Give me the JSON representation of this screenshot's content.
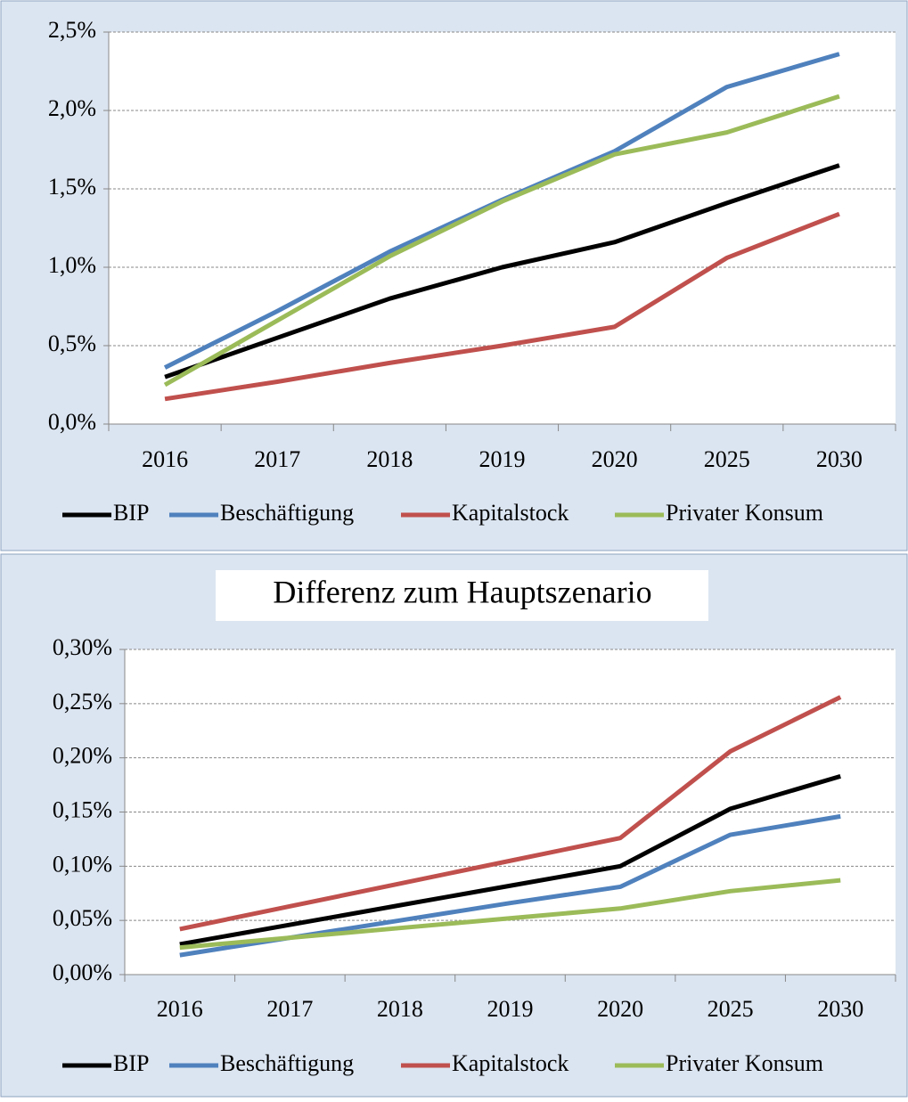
{
  "chart_data": [
    {
      "type": "line",
      "categories": [
        "2016",
        "2017",
        "2018",
        "2019",
        "2020",
        "2025",
        "2030"
      ],
      "series": [
        {
          "name": "BIP",
          "color": "#000000",
          "values": [
            0.3,
            0.55,
            0.8,
            1.0,
            1.16,
            1.41,
            1.65
          ]
        },
        {
          "name": "Beschäftigung",
          "color": "#4f81bd",
          "values": [
            0.36,
            0.72,
            1.1,
            1.43,
            1.74,
            2.15,
            2.36
          ]
        },
        {
          "name": "Kapitalstock",
          "color": "#c0504d",
          "values": [
            0.16,
            0.27,
            0.39,
            0.5,
            0.62,
            1.06,
            1.34
          ]
        },
        {
          "name": "Privater Konsum",
          "color": "#9bbb59",
          "values": [
            0.25,
            0.66,
            1.07,
            1.42,
            1.72,
            1.86,
            2.09
          ]
        }
      ],
      "ylim": [
        0,
        2.5
      ],
      "yticks": [
        {
          "value": 0,
          "label": "0,0%"
        },
        {
          "value": 0.5,
          "label": "0,5%"
        },
        {
          "value": 1.0,
          "label": "1,0%"
        },
        {
          "value": 1.5,
          "label": "1,5%"
        },
        {
          "value": 2.0,
          "label": "2,0%"
        },
        {
          "value": 2.5,
          "label": "2,5%"
        }
      ],
      "grid": true,
      "legend": "bottom"
    },
    {
      "type": "line",
      "title": "Differenz zum Hauptszenario",
      "categories": [
        "2016",
        "2017",
        "2018",
        "2019",
        "2020",
        "2025",
        "2030"
      ],
      "series": [
        {
          "name": "BIP",
          "color": "#000000",
          "values": [
            0.028,
            0.046,
            0.064,
            0.082,
            0.1,
            0.153,
            0.183
          ]
        },
        {
          "name": "Beschäftigung",
          "color": "#4f81bd",
          "values": [
            0.018,
            0.034,
            0.05,
            0.066,
            0.081,
            0.129,
            0.146
          ]
        },
        {
          "name": "Kapitalstock",
          "color": "#c0504d",
          "values": [
            0.042,
            0.063,
            0.084,
            0.105,
            0.126,
            0.206,
            0.256
          ]
        },
        {
          "name": "Privater Konsum",
          "color": "#9bbb59",
          "values": [
            0.025,
            0.034,
            0.043,
            0.052,
            0.061,
            0.077,
            0.087
          ]
        }
      ],
      "ylim": [
        0,
        0.3
      ],
      "yticks": [
        {
          "value": 0,
          "label": "0,00%"
        },
        {
          "value": 0.05,
          "label": "0,05%"
        },
        {
          "value": 0.1,
          "label": "0,10%"
        },
        {
          "value": 0.15,
          "label": "0,15%"
        },
        {
          "value": 0.2,
          "label": "0,20%"
        },
        {
          "value": 0.25,
          "label": "0,25%"
        },
        {
          "value": 0.3,
          "label": "0,30%"
        }
      ],
      "grid": true,
      "legend": "bottom"
    }
  ]
}
